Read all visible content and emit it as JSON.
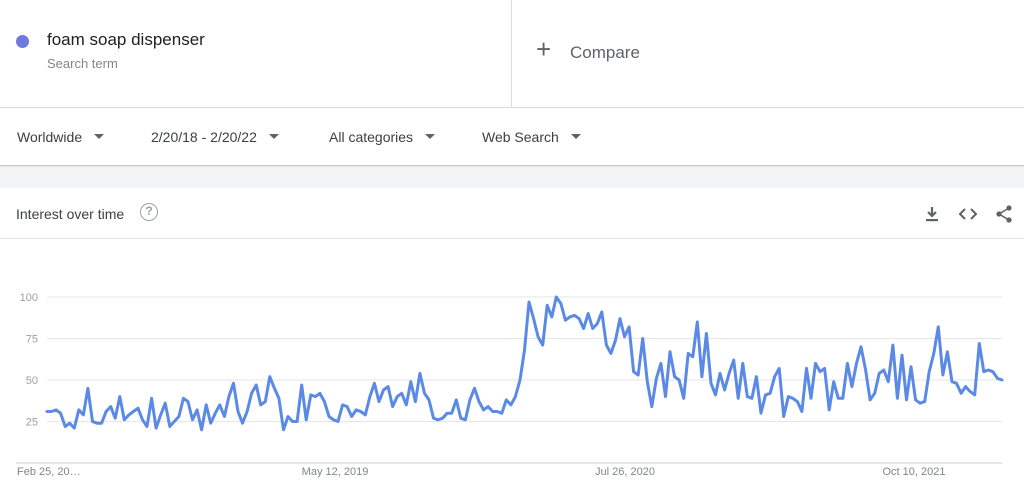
{
  "search_term": {
    "name": "foam soap dispenser",
    "subtitle": "Search term",
    "color": "#6f7ae0"
  },
  "compare": {
    "label": "Compare",
    "icon": "plus-icon"
  },
  "filters": {
    "region": "Worldwide",
    "date_range": "2/20/18 - 2/20/22",
    "category": "All categories",
    "search_type": "Web Search"
  },
  "card": {
    "title": "Interest over time",
    "help_icon": "question-mark-icon",
    "actions": [
      "download-icon",
      "embed-code-icon",
      "share-icon"
    ]
  },
  "chart_data": {
    "type": "line",
    "x_tick_labels": [
      "Feb 25, 20…",
      "May 12, 2019",
      "Jul 26, 2020",
      "Oct 10, 2021"
    ],
    "y_tick_labels": [
      "100",
      "75",
      "50",
      "25"
    ],
    "ylim": [
      0,
      100
    ],
    "grid": true,
    "line_color": "#5b8ae6",
    "series": [
      {
        "values": [
          31,
          31,
          32,
          30,
          22,
          24,
          21,
          32,
          29,
          45,
          25,
          24,
          24,
          31,
          34,
          27,
          40,
          26,
          29,
          31,
          33,
          26,
          22,
          39,
          21,
          29,
          36,
          22,
          25,
          28,
          39,
          37,
          26,
          32,
          20,
          35,
          24,
          30,
          35,
          28,
          40,
          48,
          31,
          24,
          31,
          42,
          47,
          35,
          37,
          52,
          45,
          39,
          20,
          28,
          25,
          25,
          47,
          26,
          41,
          40,
          42,
          37,
          28,
          26,
          25,
          35,
          34,
          28,
          32,
          31,
          29,
          40,
          48,
          37,
          44,
          46,
          34,
          40,
          42,
          35,
          49,
          37,
          54,
          42,
          38,
          27,
          26,
          27,
          30,
          30,
          38,
          27,
          26,
          38,
          45,
          37,
          32,
          34,
          31,
          31,
          30,
          38,
          35,
          40,
          50,
          68,
          97,
          87,
          76,
          71,
          95,
          88,
          100,
          96,
          86,
          88,
          89,
          87,
          81,
          90,
          81,
          84,
          91,
          71,
          66,
          74,
          87,
          76,
          82,
          55,
          53,
          75,
          49,
          34,
          51,
          60,
          40,
          67,
          52,
          50,
          39,
          66,
          64,
          85,
          52,
          78,
          48,
          41,
          54,
          44,
          54,
          62,
          39,
          60,
          40,
          39,
          52,
          30,
          41,
          42,
          52,
          57,
          28,
          40,
          39,
          37,
          31,
          57,
          39,
          60,
          55,
          57,
          32,
          49,
          39,
          39,
          60,
          46,
          60,
          70,
          56,
          38,
          42,
          54,
          56,
          49,
          71,
          39,
          65,
          38,
          58,
          38,
          36,
          37,
          55,
          66,
          82,
          53,
          67,
          49,
          48,
          42,
          46,
          43,
          41,
          72,
          55,
          56,
          55,
          51,
          50
        ]
      }
    ]
  }
}
